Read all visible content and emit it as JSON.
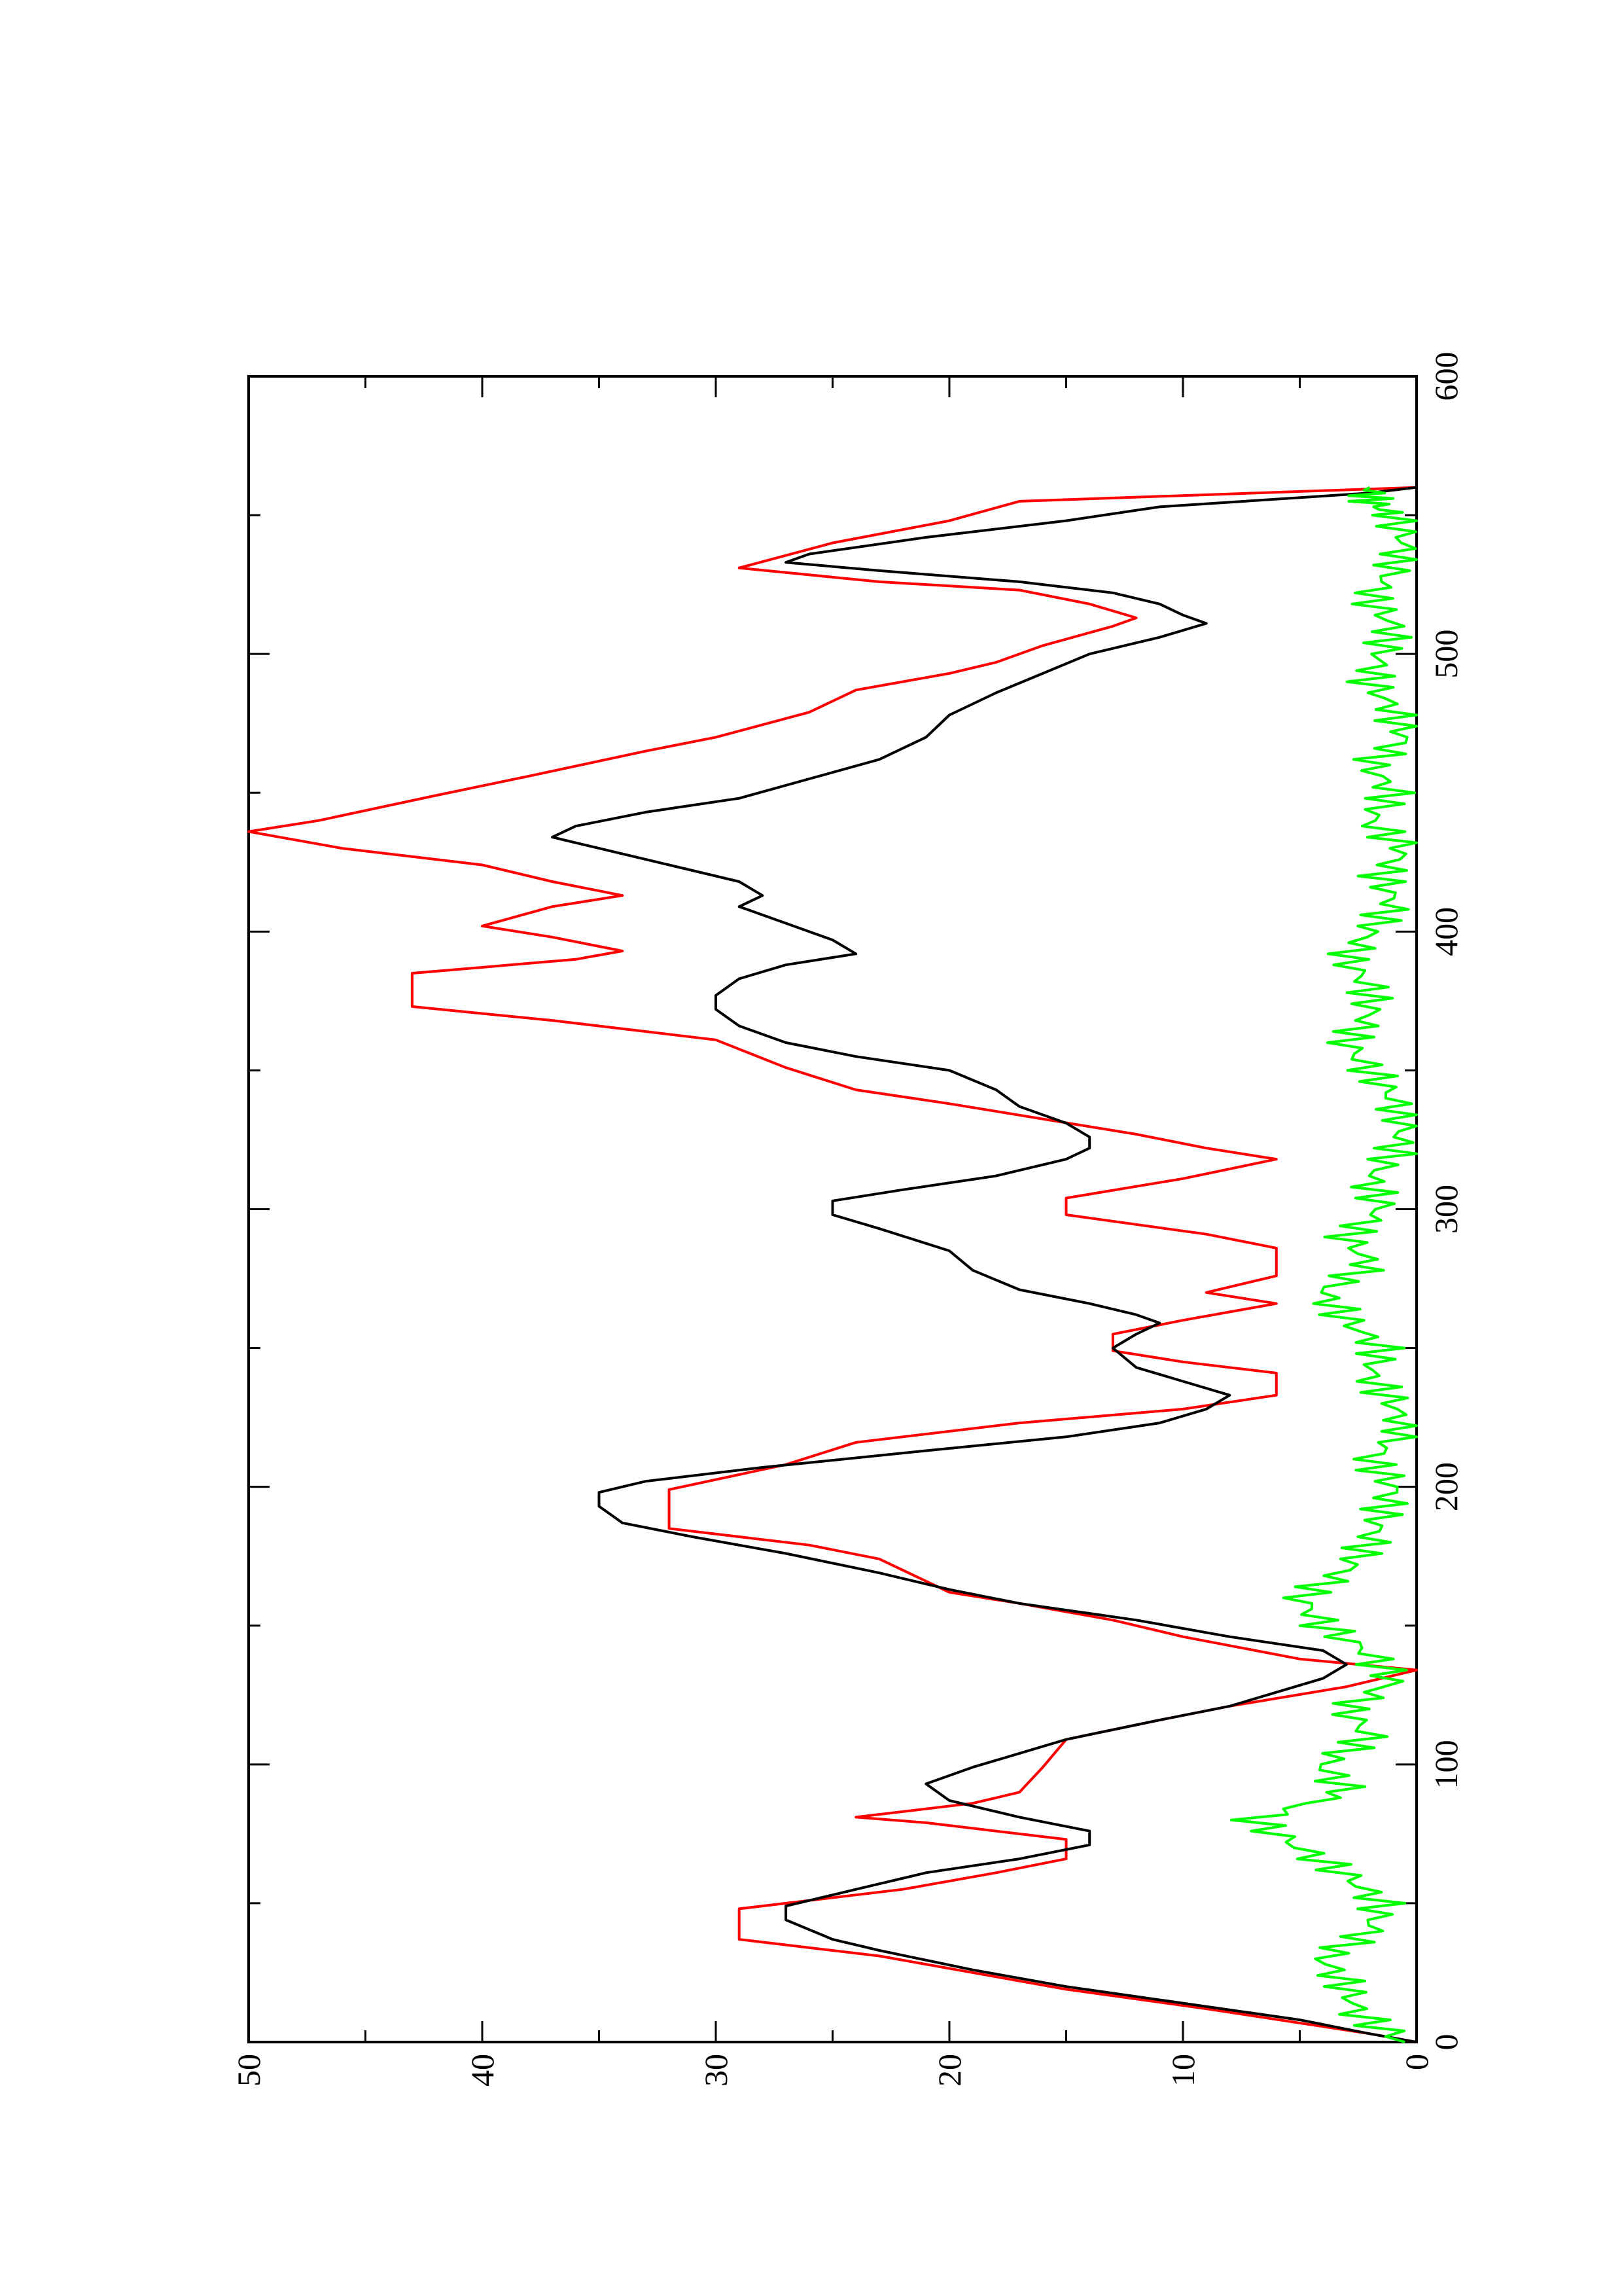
{
  "chart_data": {
    "type": "line",
    "orientation": "rotated 90 degrees counter-clockwise",
    "title": "",
    "xlabel": "",
    "ylabel": "",
    "xlim": [
      0,
      600
    ],
    "ylim": [
      0,
      50
    ],
    "x_ticks": [
      "0",
      "100",
      "200",
      "300",
      "400",
      "500",
      "600"
    ],
    "y_ticks": [
      "0",
      "10",
      "20",
      "30",
      "40",
      "50"
    ],
    "grid": false,
    "legend": "none",
    "series": [
      {
        "color": "#ff0000",
        "style": "stepped",
        "points": [
          [
            0,
            0
          ],
          [
            3,
            2
          ],
          [
            12,
            9
          ],
          [
            19,
            15
          ],
          [
            31,
            23
          ],
          [
            37,
            29
          ],
          [
            48,
            29
          ],
          [
            55,
            22
          ],
          [
            61,
            18
          ],
          [
            66,
            15
          ],
          [
            73,
            15
          ],
          [
            79,
            21
          ],
          [
            81,
            24
          ],
          [
            86,
            19
          ],
          [
            90,
            17
          ],
          [
            99,
            16
          ],
          [
            109,
            15
          ],
          [
            116,
            11
          ],
          [
            121,
            8
          ],
          [
            128,
            3
          ],
          [
            134,
            0
          ],
          [
            138,
            5
          ],
          [
            146,
            10
          ],
          [
            152,
            13
          ],
          [
            158,
            17
          ],
          [
            162,
            20
          ],
          [
            174,
            23
          ],
          [
            179,
            26
          ],
          [
            185,
            32
          ],
          [
            199,
            32
          ],
          [
            208,
            27
          ],
          [
            216,
            24
          ],
          [
            223,
            17
          ],
          [
            228,
            10
          ],
          [
            233,
            6
          ],
          [
            241,
            6
          ],
          [
            245,
            10
          ],
          [
            249,
            13
          ],
          [
            255,
            13
          ],
          [
            260,
            10
          ],
          [
            266,
            6
          ],
          [
            270,
            9
          ],
          [
            276,
            6
          ],
          [
            286,
            6
          ],
          [
            291,
            9
          ],
          [
            298,
            15
          ],
          [
            304,
            15
          ],
          [
            311,
            10
          ],
          [
            318,
            6
          ],
          [
            322,
            9
          ],
          [
            327,
            12
          ],
          [
            338,
            20
          ],
          [
            343,
            24
          ],
          [
            351,
            27
          ],
          [
            361,
            30
          ],
          [
            368,
            37
          ],
          [
            373,
            43
          ],
          [
            385,
            43
          ],
          [
            390,
            36
          ],
          [
            393,
            34
          ],
          [
            398,
            37
          ],
          [
            402,
            40
          ],
          [
            409,
            37
          ],
          [
            413,
            34
          ],
          [
            418,
            37
          ],
          [
            424,
            40
          ],
          [
            430,
            46
          ],
          [
            436,
            50
          ],
          [
            440,
            47
          ],
          [
            449,
            42
          ],
          [
            456,
            38
          ],
          [
            465,
            33
          ],
          [
            470,
            30
          ],
          [
            479,
            26
          ],
          [
            487,
            24
          ],
          [
            493,
            20
          ],
          [
            497,
            18
          ],
          [
            503,
            16
          ],
          [
            510,
            13
          ],
          [
            513,
            12
          ],
          [
            518,
            14
          ],
          [
            523,
            17
          ],
          [
            526,
            23
          ],
          [
            531,
            29
          ],
          [
            540,
            25
          ],
          [
            548,
            20
          ],
          [
            555,
            17
          ],
          [
            560,
            0
          ]
        ]
      },
      {
        "color": "#000000",
        "style": "smooth-noisy",
        "points": [
          [
            0,
            0
          ],
          [
            3,
            2
          ],
          [
            8,
            5
          ],
          [
            14,
            10
          ],
          [
            20,
            15
          ],
          [
            26,
            19
          ],
          [
            33,
            23
          ],
          [
            37,
            25
          ],
          [
            44,
            27
          ],
          [
            49,
            27
          ],
          [
            55,
            24
          ],
          [
            61,
            21
          ],
          [
            66,
            17
          ],
          [
            71,
            14
          ],
          [
            76,
            14
          ],
          [
            81,
            17
          ],
          [
            87,
            20
          ],
          [
            93,
            21
          ],
          [
            99,
            19
          ],
          [
            104,
            17
          ],
          [
            109,
            15
          ],
          [
            116,
            11
          ],
          [
            121,
            8
          ],
          [
            126,
            6
          ],
          [
            131,
            4
          ],
          [
            136,
            3
          ],
          [
            141,
            4
          ],
          [
            146,
            8
          ],
          [
            152,
            12
          ],
          [
            158,
            17
          ],
          [
            163,
            20
          ],
          [
            169,
            23
          ],
          [
            176,
            27
          ],
          [
            182,
            31
          ],
          [
            187,
            34
          ],
          [
            193,
            35
          ],
          [
            198,
            35
          ],
          [
            202,
            33
          ],
          [
            207,
            28
          ],
          [
            213,
            21
          ],
          [
            218,
            15
          ],
          [
            223,
            11
          ],
          [
            228,
            9
          ],
          [
            233,
            8
          ],
          [
            238,
            10
          ],
          [
            243,
            12
          ],
          [
            250,
            13
          ],
          [
            255,
            12
          ],
          [
            259,
            11
          ],
          [
            262,
            12
          ],
          [
            266,
            14
          ],
          [
            271,
            17
          ],
          [
            278,
            19
          ],
          [
            285,
            20
          ],
          [
            293,
            23
          ],
          [
            298,
            25
          ],
          [
            303,
            25
          ],
          [
            307,
            22
          ],
          [
            312,
            18
          ],
          [
            318,
            15
          ],
          [
            322,
            14
          ],
          [
            326,
            14
          ],
          [
            331,
            15
          ],
          [
            337,
            17
          ],
          [
            343,
            18
          ],
          [
            350,
            20
          ],
          [
            355,
            24
          ],
          [
            360,
            27
          ],
          [
            366,
            29
          ],
          [
            372,
            30
          ],
          [
            377,
            30
          ],
          [
            383,
            29
          ],
          [
            388,
            27
          ],
          [
            392,
            24
          ],
          [
            397,
            25
          ],
          [
            403,
            27
          ],
          [
            409,
            29
          ],
          [
            413,
            28
          ],
          [
            418,
            29
          ],
          [
            424,
            32
          ],
          [
            430,
            35
          ],
          [
            434,
            37
          ],
          [
            438,
            36
          ],
          [
            443,
            33
          ],
          [
            448,
            29
          ],
          [
            455,
            26
          ],
          [
            462,
            23
          ],
          [
            470,
            21
          ],
          [
            478,
            20
          ],
          [
            486,
            18
          ],
          [
            493,
            16
          ],
          [
            500,
            14
          ],
          [
            506,
            11
          ],
          [
            511,
            9
          ],
          [
            514,
            10
          ],
          [
            518,
            11
          ],
          [
            522,
            13
          ],
          [
            526,
            17
          ],
          [
            530,
            23
          ],
          [
            533,
            27
          ],
          [
            536,
            26
          ],
          [
            542,
            21
          ],
          [
            548,
            15
          ],
          [
            553,
            11
          ],
          [
            558,
            2
          ],
          [
            560,
            0
          ]
        ]
      },
      {
        "color": "#00ff00",
        "style": "noise",
        "points": [
          [
            0,
            0.5
          ],
          [
            10,
            2.5
          ],
          [
            20,
            3
          ],
          [
            30,
            4
          ],
          [
            40,
            2
          ],
          [
            50,
            1.5
          ],
          [
            60,
            3
          ],
          [
            70,
            5
          ],
          [
            80,
            7
          ],
          [
            90,
            3
          ],
          [
            100,
            4
          ],
          [
            110,
            2
          ],
          [
            120,
            3
          ],
          [
            130,
            1
          ],
          [
            140,
            2
          ],
          [
            150,
            4
          ],
          [
            160,
            5
          ],
          [
            170,
            3
          ],
          [
            180,
            2
          ],
          [
            190,
            1.5
          ],
          [
            200,
            1
          ],
          [
            210,
            2
          ],
          [
            220,
            0.5
          ],
          [
            230,
            1
          ],
          [
            240,
            2
          ],
          [
            250,
            1.5
          ],
          [
            260,
            3
          ],
          [
            270,
            4
          ],
          [
            280,
            2
          ],
          [
            290,
            3
          ],
          [
            300,
            1.5
          ],
          [
            310,
            2
          ],
          [
            320,
            1
          ],
          [
            330,
            0.5
          ],
          [
            340,
            1
          ],
          [
            350,
            2
          ],
          [
            360,
            3
          ],
          [
            370,
            2
          ],
          [
            380,
            2
          ],
          [
            390,
            3
          ],
          [
            400,
            2
          ],
          [
            410,
            1
          ],
          [
            420,
            1.5
          ],
          [
            430,
            0.5
          ],
          [
            440,
            2
          ],
          [
            450,
            1
          ],
          [
            460,
            2
          ],
          [
            470,
            0.5
          ],
          [
            480,
            1
          ],
          [
            490,
            2
          ],
          [
            500,
            1.5
          ],
          [
            510,
            1
          ],
          [
            520,
            2
          ],
          [
            530,
            1
          ],
          [
            540,
            0.5
          ],
          [
            550,
            1
          ],
          [
            555,
            2
          ],
          [
            560,
            2
          ]
        ]
      }
    ]
  }
}
